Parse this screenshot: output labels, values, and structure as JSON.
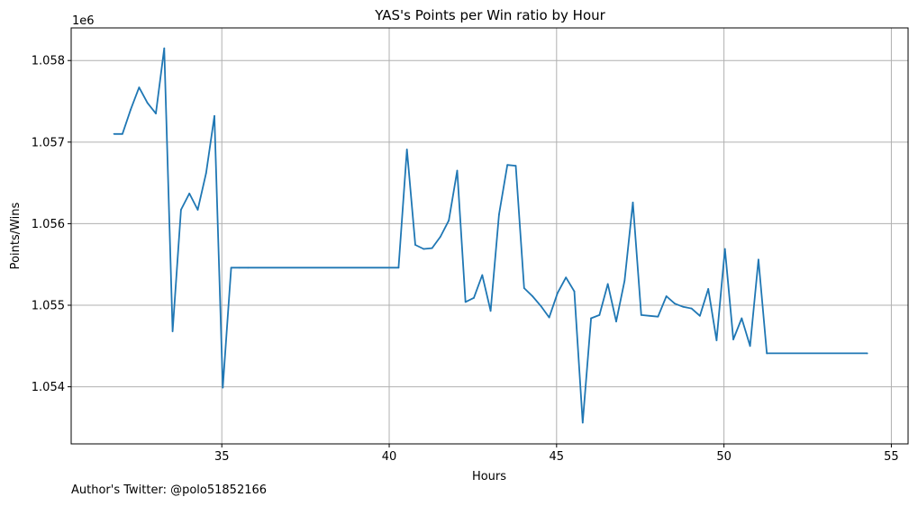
{
  "footer": {
    "credit": "Author's Twitter: @polo51852166"
  },
  "colors": {
    "line": "#1f77b4",
    "grid": "#b0b0b0",
    "axis": "#000000"
  },
  "chart_data": {
    "type": "line",
    "title": "YAS's Points per Win ratio by Hour",
    "xlabel": "Hours",
    "ylabel": "Points/Wins",
    "y_multiplier_label": "1e6",
    "xlim": [
      30.5,
      55.5
    ],
    "ylim": [
      1.0533,
      1.0584
    ],
    "xticks": [
      35,
      40,
      45,
      50,
      55
    ],
    "xtick_labels": [
      "35",
      "40",
      "45",
      "50",
      "55"
    ],
    "yticks": [
      1.054,
      1.055,
      1.056,
      1.057,
      1.058
    ],
    "ytick_labels": [
      "1.054",
      "1.055",
      "1.056",
      "1.057",
      "1.058"
    ],
    "grid": true,
    "series": [
      {
        "x": [
          31.78,
          32.03,
          32.28,
          32.53,
          32.78,
          33.03,
          33.28,
          33.53,
          33.78,
          34.03,
          34.28,
          34.53,
          34.78,
          35.03,
          35.28,
          35.53,
          35.78,
          40.28,
          40.53,
          40.78,
          41.03,
          41.28,
          41.53,
          41.78,
          42.03,
          42.28,
          42.53,
          42.78,
          43.03,
          43.28,
          43.53,
          43.78,
          44.03,
          44.28,
          44.53,
          44.78,
          45.03,
          45.28,
          45.53,
          45.78,
          46.03,
          46.28,
          46.53,
          46.78,
          47.03,
          47.28,
          47.53,
          47.78,
          48.03,
          48.28,
          48.53,
          48.78,
          49.03,
          49.28,
          49.53,
          49.78,
          50.03,
          50.28,
          50.53,
          50.78,
          51.03,
          51.28,
          54.28
        ],
        "y": [
          1.0571,
          1.0571,
          1.0574,
          1.05767,
          1.05748,
          1.05735,
          1.05815,
          1.05468,
          1.05617,
          1.05637,
          1.05617,
          1.05662,
          1.05732,
          1.05399,
          1.05546,
          1.05546,
          1.05546,
          1.05546,
          1.05691,
          1.05574,
          1.05569,
          1.0557,
          1.05584,
          1.05604,
          1.05665,
          1.05504,
          1.05509,
          1.05537,
          1.05493,
          1.05611,
          1.05672,
          1.05671,
          1.05521,
          1.05511,
          1.05499,
          1.05485,
          1.05515,
          1.05534,
          1.05517,
          1.05356,
          1.05484,
          1.05488,
          1.05526,
          1.0548,
          1.0553,
          1.05626,
          1.05488,
          1.05487,
          1.05486,
          1.05511,
          1.05502,
          1.05498,
          1.05496,
          1.05487,
          1.0552,
          1.05457,
          1.05569,
          1.05458,
          1.05484,
          1.0545,
          1.05556,
          1.05441,
          1.05441
        ]
      }
    ]
  }
}
